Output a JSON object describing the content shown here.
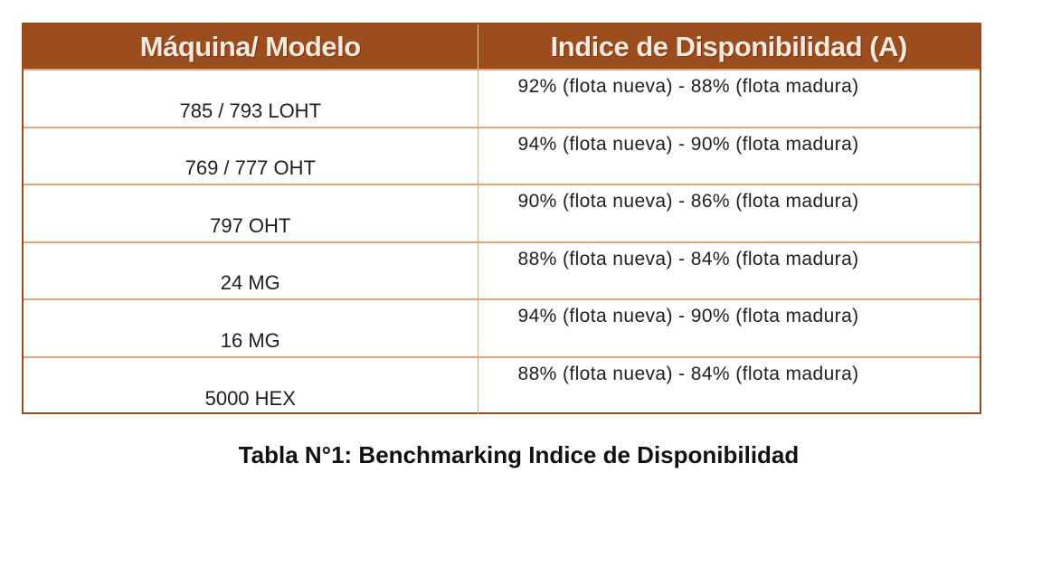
{
  "table": {
    "headers": [
      "Máquina/ Modelo",
      "Indice de Disponibilidad (A)"
    ],
    "rows": [
      {
        "model": "785 / 793 LOHT",
        "availability": "92% (flota nueva) - 88% (flota madura)"
      },
      {
        "model": "769 / 777 OHT",
        "availability": "94% (flota nueva) - 90% (flota madura)"
      },
      {
        "model": "797 OHT",
        "availability": "90% (flota nueva) - 86% (flota madura)"
      },
      {
        "model": "24 MG",
        "availability": "88% (flota nueva) - 84% (flota madura)"
      },
      {
        "model": "16 MG",
        "availability": "94% (flota nueva) - 90% (flota madura)"
      },
      {
        "model": "5000 HEX",
        "availability": "88% (flota nueva) - 84% (flota madura)"
      }
    ]
  },
  "caption": "Tabla N°1: Benchmarking Indice de Disponibilidad",
  "colors": {
    "header_bg": "#9c4d1e",
    "header_text": "#f3e9dc",
    "row_border": "#e4a57a",
    "frame": "#9a4a1c"
  }
}
